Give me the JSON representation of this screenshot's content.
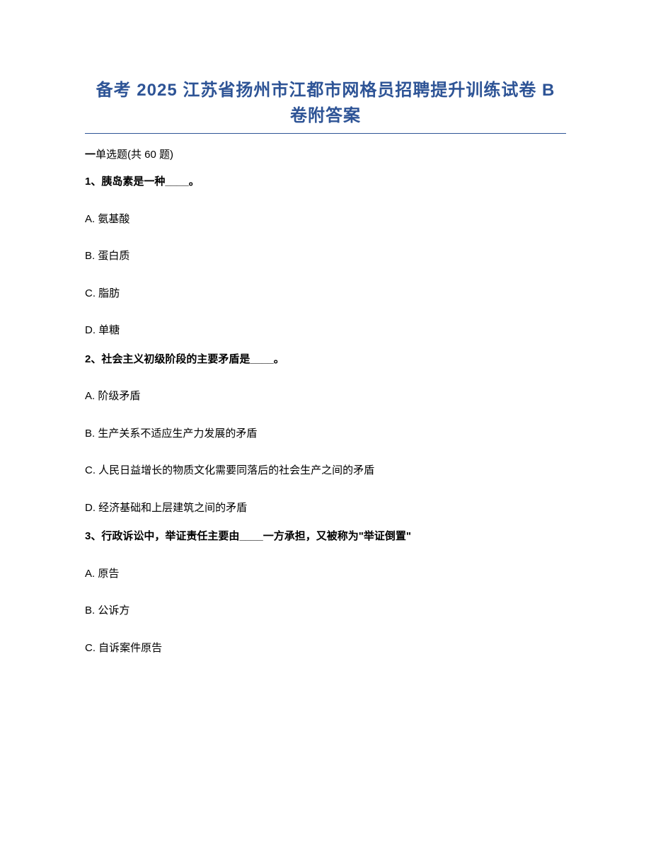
{
  "title_line1": "备考 2025 江苏省扬州市江都市网格员招聘提升训练试卷 B",
  "title_line2": "卷附答案",
  "section_header_prefix": "一",
  "section_header_text": "单选题(共 60 题)",
  "questions": [
    {
      "number": "1、",
      "text": "胰岛素是一种____。",
      "options": [
        {
          "letter": "A.",
          "text": " 氨基酸"
        },
        {
          "letter": "B.",
          "text": " 蛋白质"
        },
        {
          "letter": "C.",
          "text": " 脂肪"
        },
        {
          "letter": "D.",
          "text": " 单糖"
        }
      ]
    },
    {
      "number": "2、",
      "text": "社会主义初级阶段的主要矛盾是____。",
      "options": [
        {
          "letter": "A.",
          "text": " 阶级矛盾"
        },
        {
          "letter": "B.",
          "text": " 生产关系不适应生产力发展的矛盾"
        },
        {
          "letter": "C.",
          "text": " 人民日益增长的物质文化需要同落后的社会生产之间的矛盾"
        },
        {
          "letter": "D.",
          "text": " 经济基础和上层建筑之间的矛盾"
        }
      ]
    },
    {
      "number": "3、",
      "text": "行政诉讼中，举证责任主要由____一方承担，又被称为\"举证倒置\"",
      "options": [
        {
          "letter": "A.",
          "text": " 原告"
        },
        {
          "letter": "B.",
          "text": " 公诉方"
        },
        {
          "letter": "C.",
          "text": " 自诉案件原告"
        }
      ]
    }
  ],
  "colors": {
    "title_color": "#2e5496",
    "text_color": "#000000",
    "background": "#ffffff"
  }
}
